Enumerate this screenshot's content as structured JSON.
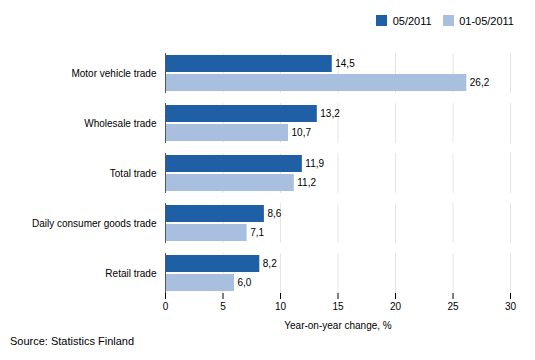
{
  "chart_data": {
    "type": "bar",
    "orientation": "horizontal",
    "categories": [
      "Retail trade",
      "Daily consumer goods trade",
      "Total trade",
      "Wholesale trade",
      "Motor vehicle trade"
    ],
    "series": [
      {
        "name": "05/2011",
        "color": "#1F5FA6",
        "values": [
          8.2,
          8.6,
          11.9,
          13.2,
          14.5
        ],
        "value_labels": [
          "8,2",
          "8,6",
          "11,9",
          "13,2",
          "14,5"
        ]
      },
      {
        "name": "01-05/2011",
        "color": "#A8BFE0",
        "values": [
          6.0,
          7.1,
          11.2,
          10.7,
          26.2
        ],
        "value_labels": [
          "6,0",
          "7,1",
          "11,2",
          "10,7",
          "26,2"
        ]
      }
    ],
    "xlabel": "Year-on-year change, %",
    "xlim": [
      0,
      30
    ],
    "xticks": [
      0,
      5,
      10,
      15,
      20,
      25,
      30
    ],
    "grid": true,
    "legend": "right",
    "data_labels": true,
    "caption": "Source: Statistics Finland"
  }
}
